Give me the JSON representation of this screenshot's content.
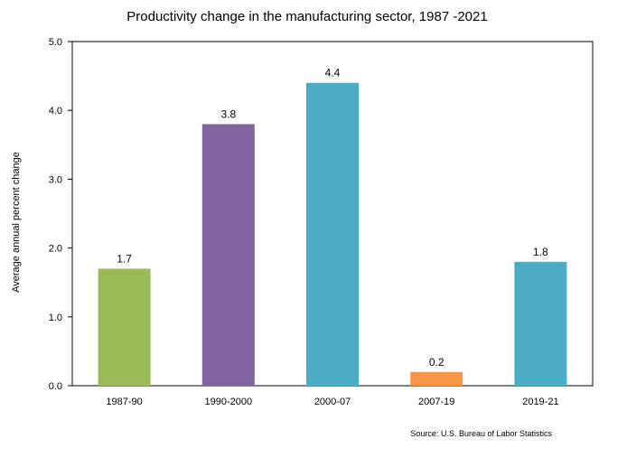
{
  "chart_data": {
    "type": "bar",
    "title": "Productivity change in the manufacturing sector, 1987 -2021",
    "xlabel": "",
    "ylabel": "Average annual percent change",
    "ylim": [
      0,
      5
    ],
    "y_ticks": [
      "0.0",
      "1.0",
      "2.0",
      "3.0",
      "4.0",
      "5.0"
    ],
    "categories": [
      "1987-90",
      "1990-2000",
      "2000-07",
      "2007-19",
      "2019-21"
    ],
    "values": [
      1.7,
      3.8,
      4.4,
      0.2,
      1.8
    ],
    "data_labels": [
      "1.7",
      "3.8",
      "4.4",
      "0.2",
      "1.8"
    ],
    "colors": [
      "#9bbb59",
      "#8064a2",
      "#4bacc6",
      "#f79646",
      "#4bacc6"
    ],
    "grid": false,
    "legend": "none",
    "source": "Source: U.S. Bureau of Labor Statistics"
  }
}
